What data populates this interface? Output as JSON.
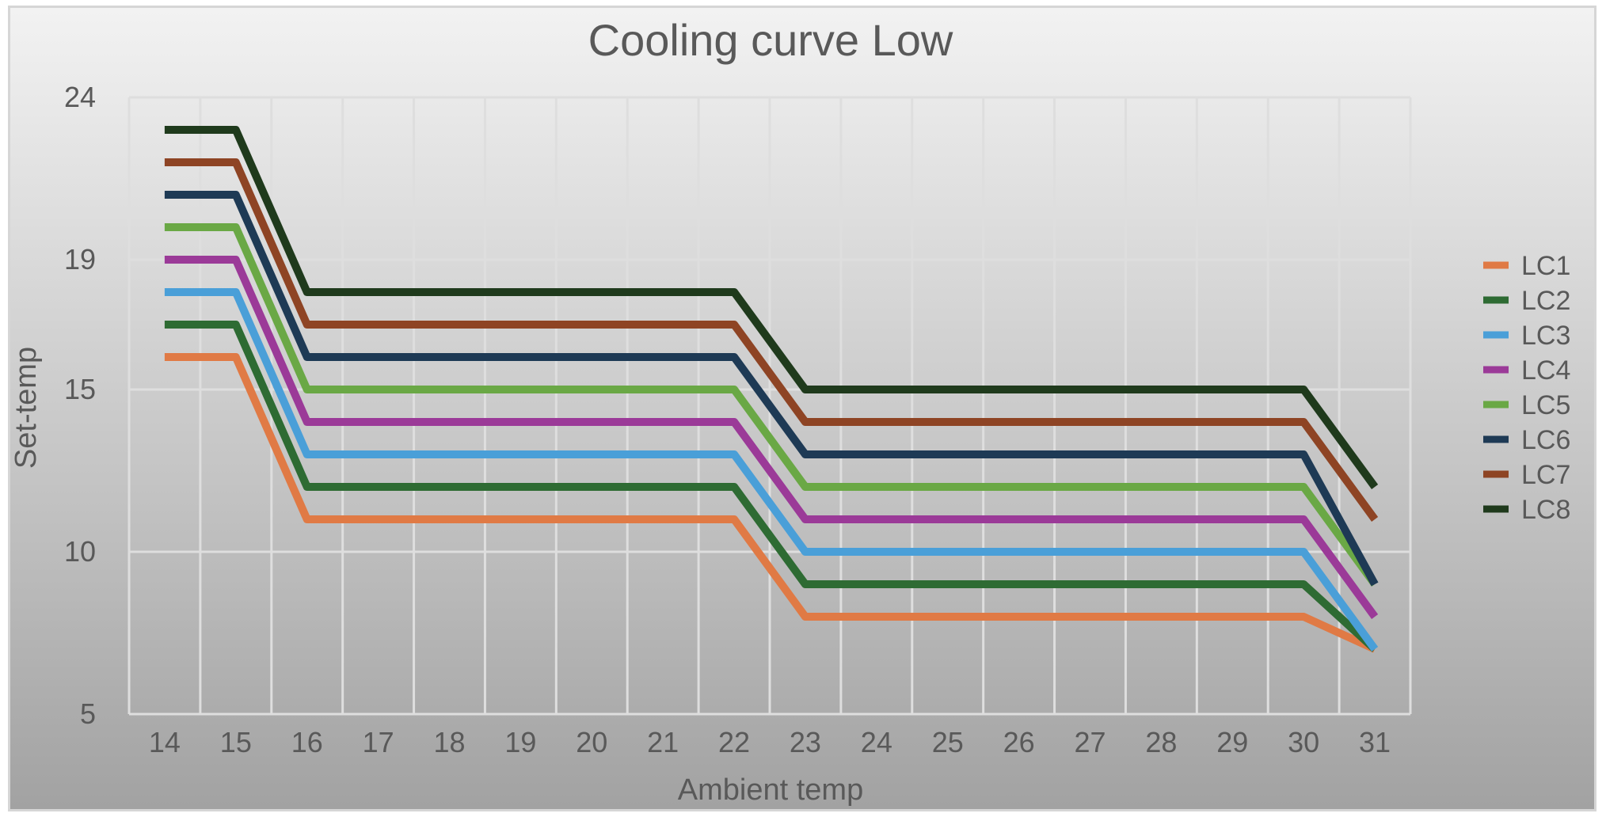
{
  "chart_data": {
    "type": "line",
    "title": "Cooling curve Low",
    "xlabel": "Ambient temp",
    "ylabel": "Set-temp",
    "x": [
      14,
      15,
      16,
      17,
      18,
      19,
      20,
      21,
      22,
      23,
      24,
      25,
      26,
      27,
      28,
      29,
      30,
      31
    ],
    "yticks": [
      5,
      10,
      15,
      19,
      24
    ],
    "ylim": [
      5,
      24
    ],
    "grid": true,
    "legend_position": "right",
    "series": [
      {
        "name": "LC1",
        "color": "#E07A45",
        "values": [
          16,
          16,
          11,
          11,
          11,
          11,
          11,
          11,
          11,
          8,
          8,
          8,
          8,
          8,
          8,
          8,
          8,
          7
        ]
      },
      {
        "name": "LC2",
        "color": "#2E6B33",
        "values": [
          17,
          17,
          12,
          12,
          12,
          12,
          12,
          12,
          12,
          9,
          9,
          9,
          9,
          9,
          9,
          9,
          9,
          7
        ]
      },
      {
        "name": "LC3",
        "color": "#4A9FD8",
        "values": [
          18,
          18,
          13,
          13,
          13,
          13,
          13,
          13,
          13,
          10,
          10,
          10,
          10,
          10,
          10,
          10,
          10,
          7
        ]
      },
      {
        "name": "LC4",
        "color": "#9B3A98",
        "values": [
          19,
          19,
          14,
          14,
          14,
          14,
          14,
          14,
          14,
          11,
          11,
          11,
          11,
          11,
          11,
          11,
          11,
          8
        ]
      },
      {
        "name": "LC5",
        "color": "#6AA845",
        "values": [
          20,
          20,
          15,
          15,
          15,
          15,
          15,
          15,
          15,
          12,
          12,
          12,
          12,
          12,
          12,
          12,
          12,
          9
        ]
      },
      {
        "name": "LC6",
        "color": "#1E3A55",
        "values": [
          21,
          21,
          16,
          16,
          16,
          16,
          16,
          16,
          16,
          13,
          13,
          13,
          13,
          13,
          13,
          13,
          13,
          9
        ]
      },
      {
        "name": "LC7",
        "color": "#8E4424",
        "values": [
          22,
          22,
          17,
          17,
          17,
          17,
          17,
          17,
          17,
          14,
          14,
          14,
          14,
          14,
          14,
          14,
          14,
          11
        ]
      },
      {
        "name": "LC8",
        "color": "#1F3A1C",
        "values": [
          23,
          23,
          18,
          18,
          18,
          18,
          18,
          18,
          18,
          15,
          15,
          15,
          15,
          15,
          15,
          15,
          15,
          12
        ]
      }
    ]
  }
}
